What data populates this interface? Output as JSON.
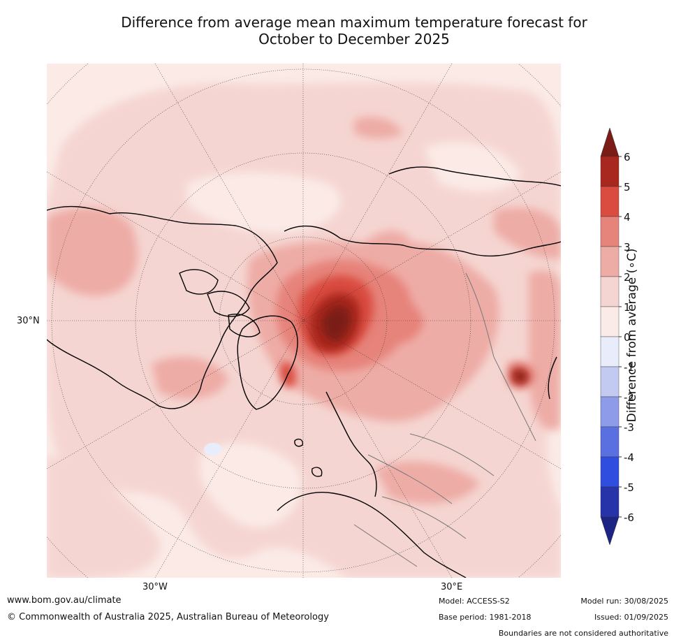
{
  "title_line1": "Difference from average mean maximum temperature forecast for",
  "title_line2": "October to December 2025",
  "map": {
    "lat_label_left": "30°N",
    "lon_label_1": "30°W",
    "lon_label_2": "30°E",
    "region": "Northern Hemisphere polar projection",
    "highlight_regions": [
      "Arctic Ocean / Barents-Kara Sea",
      "Greenland",
      "East Asia"
    ]
  },
  "colorbar": {
    "label": "Difference from average (∘C)",
    "ticks": [
      "6",
      "5",
      "4",
      "3",
      "2",
      "1",
      "0",
      "-1",
      "-2",
      "-3",
      "-4",
      "-5",
      "-6"
    ],
    "colors": [
      "#7b1c17",
      "#a8271f",
      "#d94c3f",
      "#e6837a",
      "#eeaca6",
      "#f5d5d1",
      "#fbebe8",
      "#e9edfb",
      "#c2caf1",
      "#8d9be8",
      "#5a70e1",
      "#2f4ddf",
      "#2733a8",
      "#1c2583"
    ],
    "range": [
      -6,
      6
    ]
  },
  "footer": {
    "website": "www.bom.gov.au/climate",
    "copyright": "© Commonwealth of Australia 2025, Australian Bureau of Meteorology",
    "model": "Model: ACCESS-S2",
    "base_period": "Base period: 1981-2018",
    "model_run": "Model run: 30/08/2025",
    "issued": "Issued: 01/09/2025",
    "disclaimer": "Boundaries are not considered authoritative"
  }
}
